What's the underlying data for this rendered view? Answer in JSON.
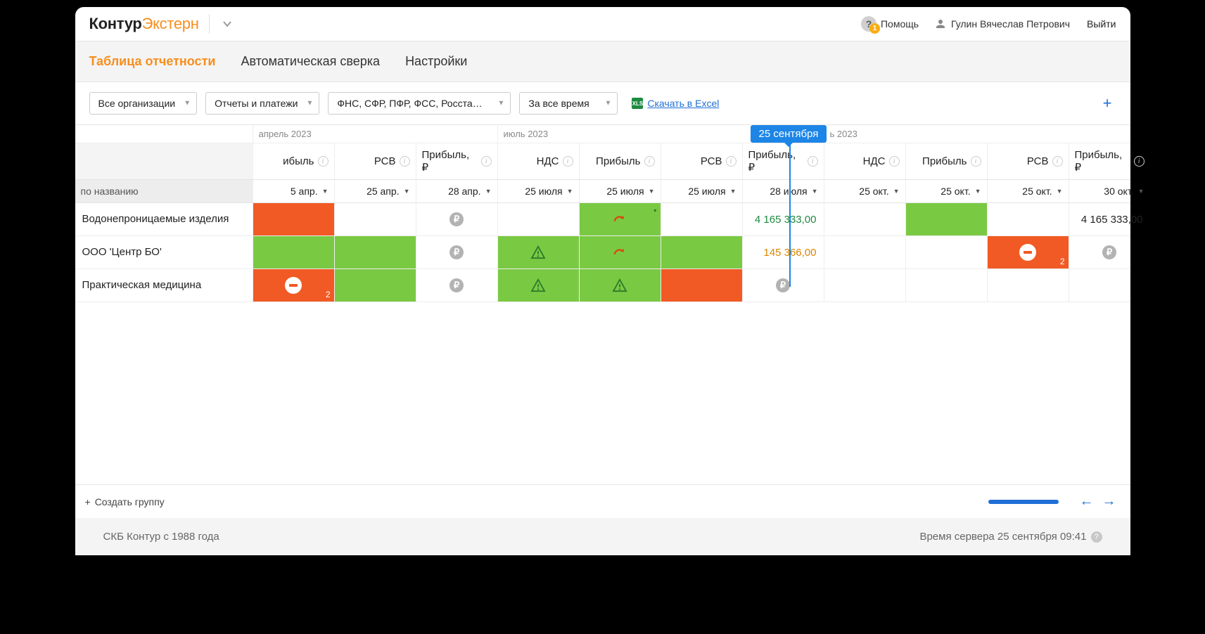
{
  "header": {
    "logo_black": "Контур",
    "logo_orange": "Экстерн",
    "help_label": "Помощь",
    "help_badge": "1",
    "user_name": "Гулин Вячеслав Петрович",
    "logout": "Выйти"
  },
  "tabs": [
    {
      "label": "Таблица отчетности",
      "active": true
    },
    {
      "label": "Автоматическая сверка",
      "active": false
    },
    {
      "label": "Настройки",
      "active": false
    }
  ],
  "filters": {
    "org": "Все организации",
    "reports": "Отчеты и платежи",
    "agencies": "ФНС, СФР, ПФР, ФСС, Росста…",
    "period": "За все время",
    "excel": "Скачать в Excel"
  },
  "today_marker": "25 сентября",
  "months": {
    "m1": "апрель 2023",
    "m2": "июль 2023",
    "m3": "ь 2023"
  },
  "columns": [
    {
      "title": "ибыль",
      "date": "5 апр."
    },
    {
      "title": "РСВ",
      "date": "25 апр."
    },
    {
      "title": "Прибыль, ₽",
      "date": "28 апр."
    },
    {
      "title": "НДС",
      "date": "25 июля"
    },
    {
      "title": "Прибыль",
      "date": "25 июля"
    },
    {
      "title": "РСВ",
      "date": "25 июля"
    },
    {
      "title": "Прибыль, ₽",
      "date": "28 июля"
    },
    {
      "title": "НДС",
      "date": "25 окт."
    },
    {
      "title": "Прибыль",
      "date": "25 окт."
    },
    {
      "title": "РСВ",
      "date": "25 окт."
    },
    {
      "title": "Прибыль, ₽",
      "date": "30 окт."
    }
  ],
  "row_header": "по названию",
  "rows": [
    {
      "org": "Водонепроницаемые изделия",
      "cells": [
        {
          "t": "red"
        },
        {
          "t": "empty"
        },
        {
          "t": "ruble"
        },
        {
          "t": "empty"
        },
        {
          "t": "green",
          "icon": "redo",
          "comment": true
        },
        {
          "t": "empty"
        },
        {
          "t": "val",
          "v": "4 165 333,00",
          "color": "green"
        },
        {
          "t": "empty"
        },
        {
          "t": "green"
        },
        {
          "t": "empty"
        },
        {
          "t": "val",
          "v": "4 165 333,00",
          "color": "black"
        }
      ]
    },
    {
      "org": "ООО 'Центр БО'",
      "cells": [
        {
          "t": "green"
        },
        {
          "t": "green"
        },
        {
          "t": "ruble"
        },
        {
          "t": "green",
          "icon": "warn"
        },
        {
          "t": "green",
          "icon": "redo"
        },
        {
          "t": "green"
        },
        {
          "t": "val",
          "v": "145 366,00",
          "color": "orange"
        },
        {
          "t": "empty"
        },
        {
          "t": "empty"
        },
        {
          "t": "red",
          "icon": "stop",
          "badge": "2"
        },
        {
          "t": "ruble"
        }
      ]
    },
    {
      "org": "Практическая медицина",
      "cells": [
        {
          "t": "red",
          "icon": "stop",
          "badge": "2"
        },
        {
          "t": "green"
        },
        {
          "t": "ruble"
        },
        {
          "t": "green",
          "icon": "warn"
        },
        {
          "t": "green",
          "icon": "warn"
        },
        {
          "t": "red"
        },
        {
          "t": "ruble"
        },
        {
          "t": "empty"
        },
        {
          "t": "empty"
        },
        {
          "t": "empty"
        },
        {
          "t": "empty"
        }
      ]
    }
  ],
  "footer": {
    "create_group": "Создать группу"
  },
  "bottom": {
    "company": "СКБ Контур с 1988 года",
    "server_time": "Время сервера 25 сентября 09:41"
  },
  "colors": {
    "accent": "#f78e1e",
    "green": "#7ac943",
    "red": "#f15a24",
    "link": "#1f6fd6",
    "today": "#1d85e6"
  }
}
